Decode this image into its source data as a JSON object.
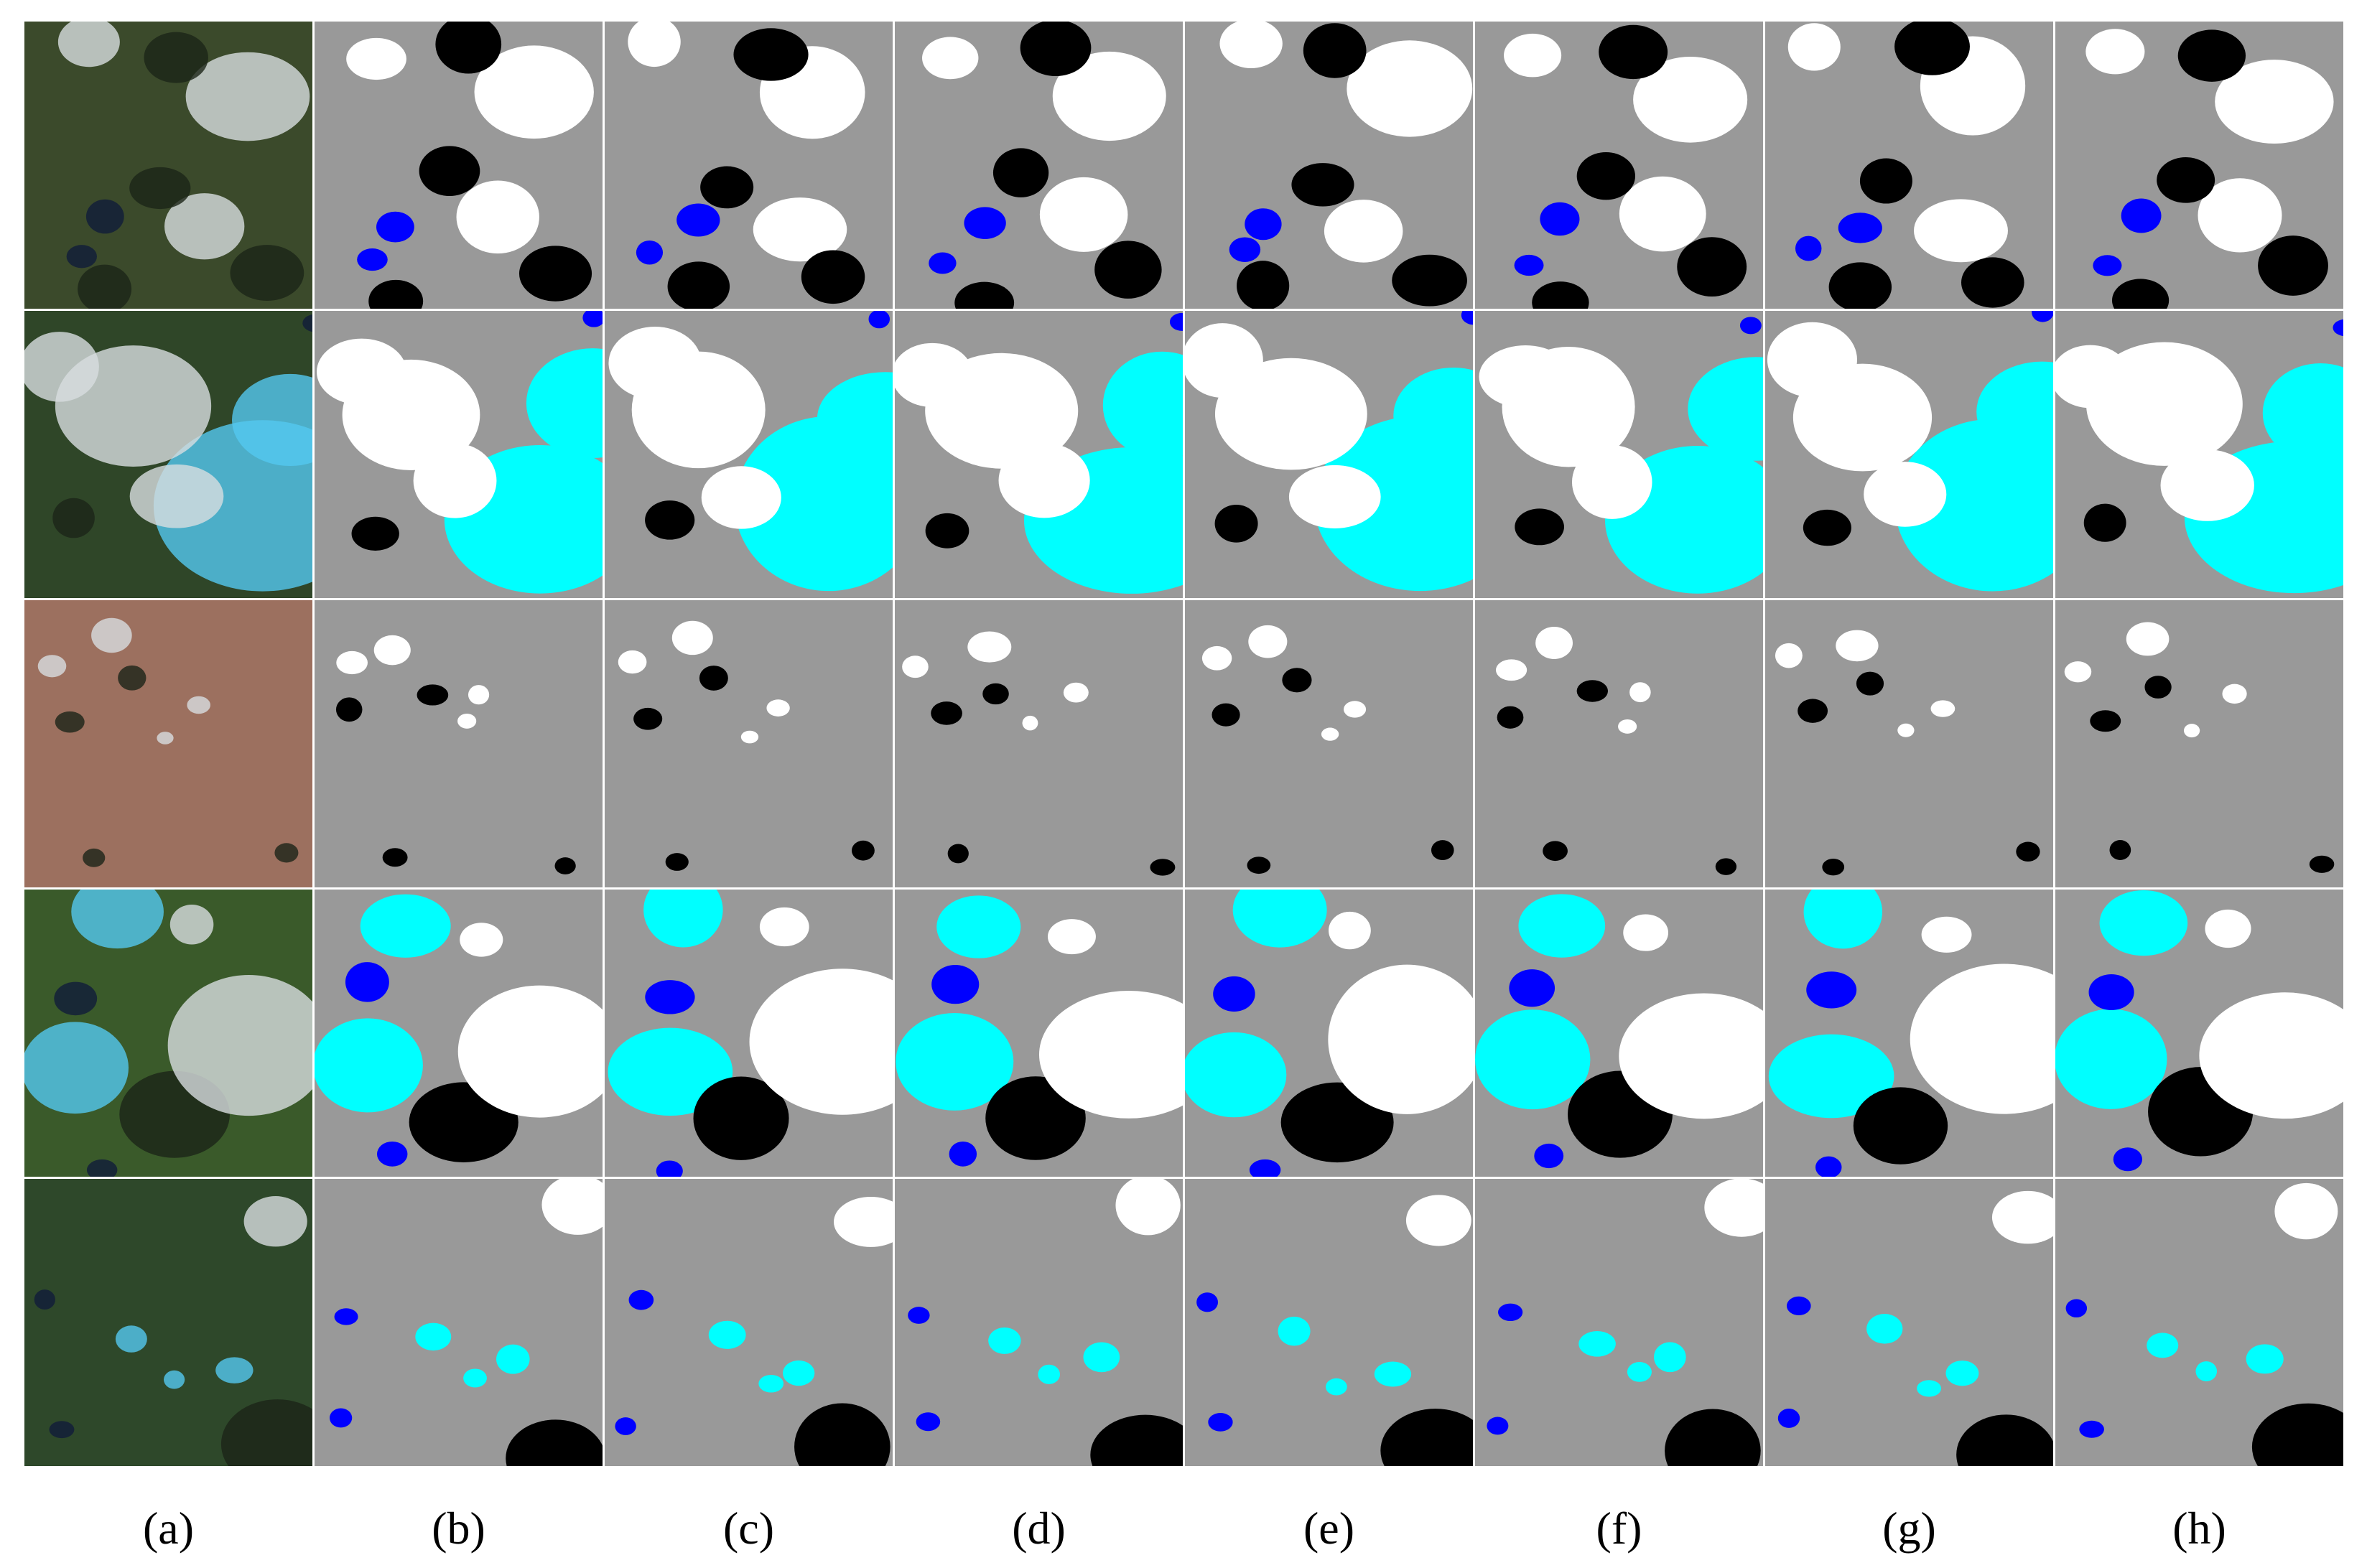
{
  "figure": {
    "panel_labels": [
      "(a)",
      "(b)",
      "(c)",
      "(d)",
      "(e)",
      "(f)",
      "(g)",
      "(h)"
    ]
  }
}
